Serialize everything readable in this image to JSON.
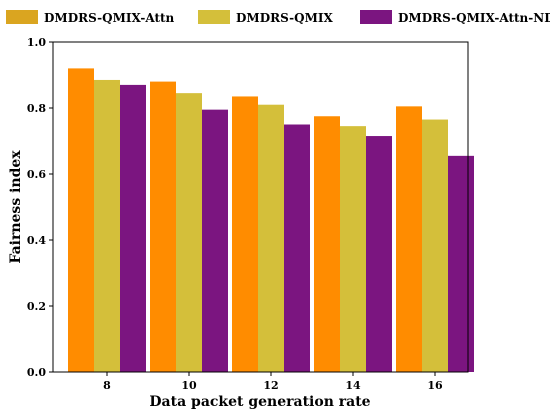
{
  "chart_data": {
    "type": "bar",
    "xlabel": "Data packet generation rate",
    "ylabel": "Fairness index",
    "categories": [
      "8",
      "10",
      "12",
      "14",
      "16"
    ],
    "ylim": [
      0,
      1.0
    ],
    "yticks": [
      "0.0",
      "0.2",
      "0.4",
      "0.6",
      "0.8",
      "1.0"
    ],
    "series": [
      {
        "name": "DMDRS-QMIX-Attn",
        "values": [
          0.92,
          0.88,
          0.835,
          0.775,
          0.805
        ],
        "color": "#FF8C00",
        "legend_color": "#DAA520"
      },
      {
        "name": "DMDRS-QMIX",
        "values": [
          0.885,
          0.845,
          0.81,
          0.745,
          0.765
        ],
        "color": "#D4BF3A"
      },
      {
        "name": "DMDRS-QMIX-Attn-ND",
        "values": [
          0.87,
          0.795,
          0.75,
          0.715,
          0.655
        ],
        "color": "#7B1580"
      }
    ],
    "legend_position": "top",
    "grid": false
  }
}
